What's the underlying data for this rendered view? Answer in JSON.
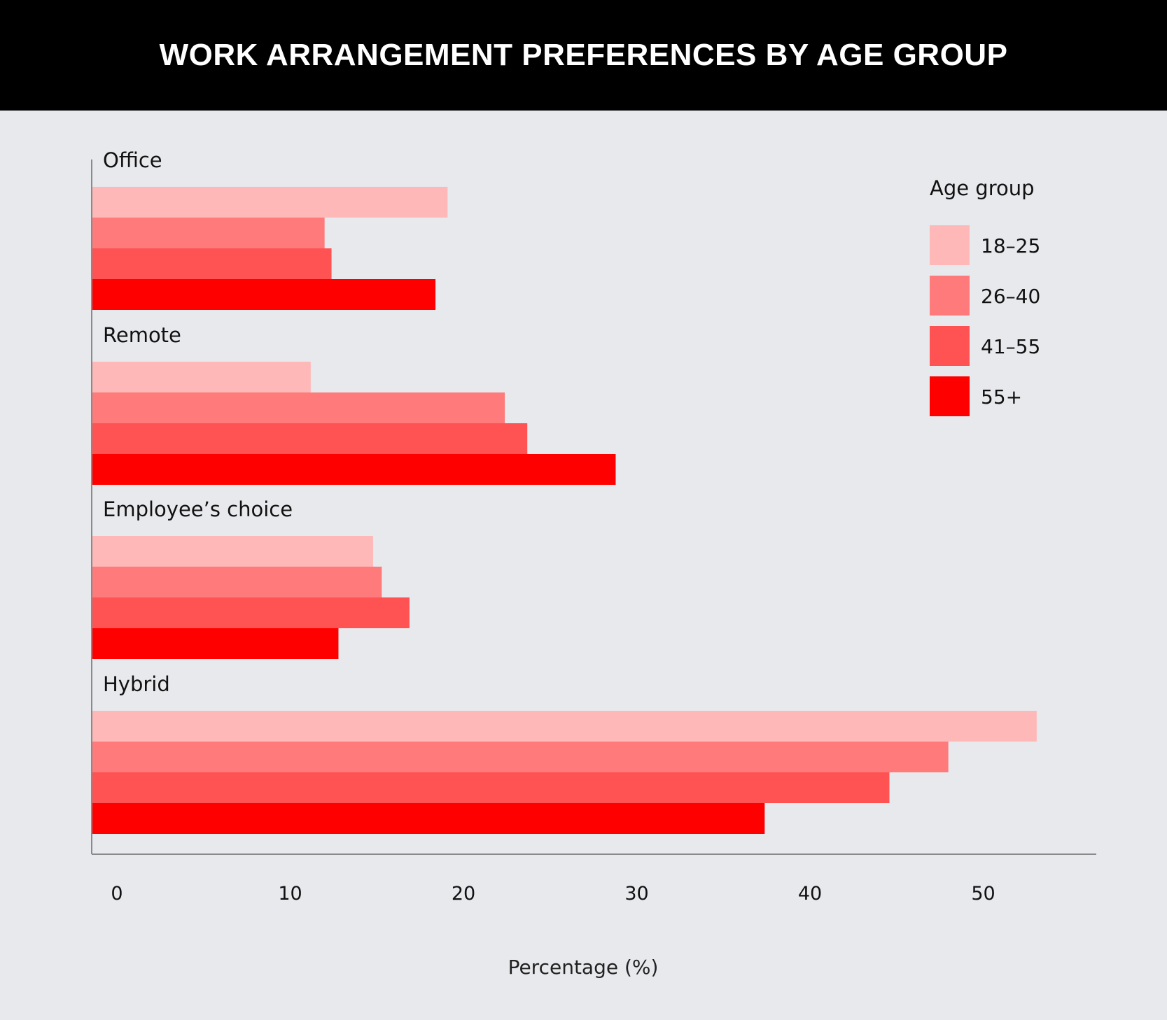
{
  "chart_data": {
    "type": "bar",
    "orientation": "horizontal",
    "title": "WORK ARRANGEMENT PREFERENCES BY AGE GROUP",
    "xlabel": "Percentage (%)",
    "ylabel": "",
    "xlim": [
      0,
      57
    ],
    "xticks": [
      0,
      10,
      20,
      30,
      40,
      50
    ],
    "categories": [
      "Office",
      "Remote",
      "Employee’s choice",
      "Hybrid"
    ],
    "legend": {
      "title": "Age group",
      "position": "top-right"
    },
    "series": [
      {
        "name": "18–25",
        "color": "#ffb8b8",
        "values": [
          20.5,
          12.6,
          16.2,
          54.5
        ]
      },
      {
        "name": "26–40",
        "color": "#ff7a7a",
        "values": [
          13.4,
          23.8,
          16.7,
          49.4
        ]
      },
      {
        "name": "41–55",
        "color": "#ff5252",
        "values": [
          13.8,
          25.1,
          18.3,
          46.0
        ]
      },
      {
        "name": "55+",
        "color": "#ff0000",
        "values": [
          19.8,
          30.2,
          14.2,
          38.8
        ]
      }
    ],
    "grid": false
  }
}
